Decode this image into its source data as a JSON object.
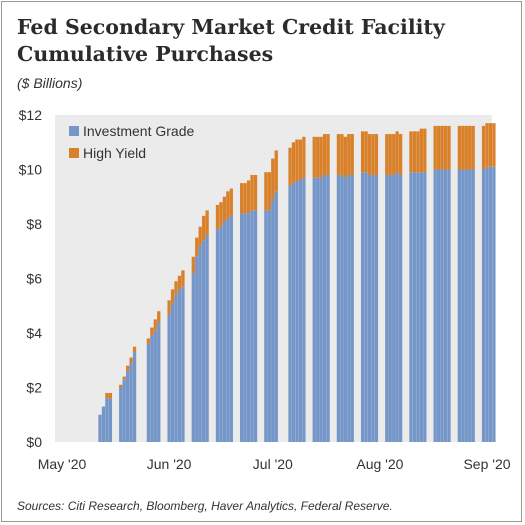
{
  "title_line1": "Fed Secondary Market Credit Facility",
  "title_line2": "Cumulative Purchases",
  "subtitle": "($ Billions)",
  "source": "Sources: Citi Research, Bloomberg, Haver Analytics, Federal Reserve.",
  "colors": {
    "investment_grade": "#7596C8",
    "high_yield": "#D9812A",
    "plot_background": "#EBEBEB",
    "text": "#333333"
  },
  "chart_data": {
    "type": "bar",
    "stacked": true,
    "title": "Fed Secondary Market Credit Facility Cumulative Purchases",
    "subtitle": "($ Billions)",
    "xlabel": "",
    "ylabel": "",
    "ylim": [
      0,
      12
    ],
    "y_ticks": [
      "$0",
      "$2",
      "$4",
      "$6",
      "$8",
      "$10",
      "$12"
    ],
    "y_tick_values": [
      0,
      2,
      4,
      6,
      8,
      10,
      12
    ],
    "x_ticks": [
      "May '20",
      "Jun '20",
      "Jul '20",
      "Aug '20",
      "Sep '20"
    ],
    "x_tick_values": [
      "2020-05-01",
      "2020-06-01",
      "2020-07-01",
      "2020-08-01",
      "2020-09-01"
    ],
    "legend_position": "top-left",
    "grid": false,
    "categories": [
      "2020-05-12",
      "2020-05-13",
      "2020-05-14",
      "2020-05-15",
      "2020-05-18",
      "2020-05-19",
      "2020-05-20",
      "2020-05-21",
      "2020-05-22",
      "2020-05-26",
      "2020-05-27",
      "2020-05-28",
      "2020-05-29",
      "2020-06-01",
      "2020-06-02",
      "2020-06-03",
      "2020-06-04",
      "2020-06-05",
      "2020-06-08",
      "2020-06-09",
      "2020-06-10",
      "2020-06-11",
      "2020-06-12",
      "2020-06-15",
      "2020-06-16",
      "2020-06-17",
      "2020-06-18",
      "2020-06-19",
      "2020-06-22",
      "2020-06-23",
      "2020-06-24",
      "2020-06-25",
      "2020-06-26",
      "2020-06-29",
      "2020-06-30",
      "2020-07-01",
      "2020-07-02",
      "2020-07-06",
      "2020-07-07",
      "2020-07-08",
      "2020-07-09",
      "2020-07-10",
      "2020-07-13",
      "2020-07-14",
      "2020-07-15",
      "2020-07-16",
      "2020-07-17",
      "2020-07-20",
      "2020-07-21",
      "2020-07-22",
      "2020-07-23",
      "2020-07-24",
      "2020-07-27",
      "2020-07-28",
      "2020-07-29",
      "2020-07-30",
      "2020-07-31",
      "2020-08-03",
      "2020-08-04",
      "2020-08-05",
      "2020-08-06",
      "2020-08-07",
      "2020-08-10",
      "2020-08-11",
      "2020-08-12",
      "2020-08-13",
      "2020-08-14",
      "2020-08-17",
      "2020-08-18",
      "2020-08-19",
      "2020-08-20",
      "2020-08-21",
      "2020-08-24",
      "2020-08-25",
      "2020-08-26",
      "2020-08-27",
      "2020-08-28",
      "2020-08-31",
      "2020-09-01",
      "2020-09-02",
      "2020-09-03"
    ],
    "series": [
      {
        "name": "Investment Grade",
        "color": "#7596C8",
        "values": [
          1.0,
          1.3,
          1.6,
          1.6,
          2.0,
          2.3,
          2.6,
          2.9,
          3.3,
          3.6,
          3.9,
          4.1,
          4.4,
          4.7,
          5.1,
          5.4,
          5.6,
          5.7,
          6.2,
          6.8,
          7.2,
          7.4,
          7.6,
          7.8,
          7.9,
          8.1,
          8.2,
          8.3,
          8.4,
          8.4,
          8.4,
          8.5,
          8.5,
          8.5,
          8.5,
          8.9,
          9.2,
          9.4,
          9.5,
          9.6,
          9.6,
          9.7,
          9.7,
          9.7,
          9.7,
          9.8,
          9.8,
          9.8,
          9.8,
          9.7,
          9.8,
          9.8,
          9.9,
          9.9,
          9.8,
          9.8,
          9.8,
          9.8,
          9.8,
          9.8,
          9.9,
          9.8,
          9.9,
          9.9,
          9.9,
          9.9,
          9.9,
          10.0,
          10.0,
          10.0,
          10.0,
          10.0,
          10.0,
          10.0,
          10.0,
          10.0,
          10.0,
          10.0,
          10.1,
          10.1,
          10.1
        ]
      },
      {
        "name": "High Yield",
        "color": "#D9812A",
        "values": [
          0.0,
          0.0,
          0.2,
          0.2,
          0.1,
          0.1,
          0.2,
          0.2,
          0.2,
          0.2,
          0.3,
          0.4,
          0.4,
          0.5,
          0.5,
          0.5,
          0.5,
          0.6,
          0.6,
          0.7,
          0.7,
          0.9,
          0.9,
          0.9,
          0.9,
          0.9,
          1.0,
          1.0,
          1.1,
          1.1,
          1.2,
          1.3,
          1.3,
          1.4,
          1.4,
          1.5,
          1.5,
          1.4,
          1.5,
          1.5,
          1.5,
          1.5,
          1.5,
          1.5,
          1.5,
          1.5,
          1.5,
          1.5,
          1.5,
          1.5,
          1.5,
          1.5,
          1.5,
          1.5,
          1.5,
          1.5,
          1.5,
          1.5,
          1.5,
          1.5,
          1.5,
          1.5,
          1.5,
          1.5,
          1.5,
          1.6,
          1.6,
          1.6,
          1.6,
          1.6,
          1.6,
          1.6,
          1.6,
          1.6,
          1.6,
          1.6,
          1.6,
          1.6,
          1.6,
          1.6,
          1.6
        ]
      }
    ]
  }
}
